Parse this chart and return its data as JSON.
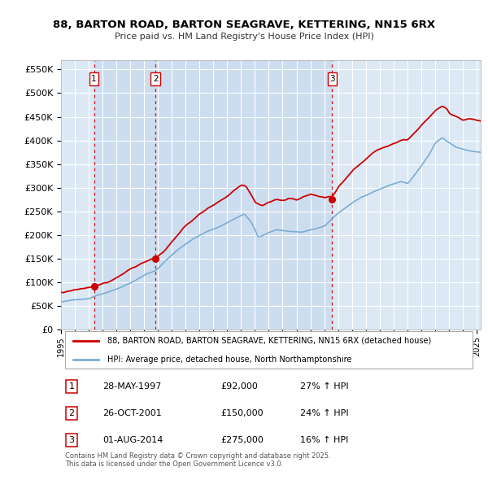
{
  "title_line1": "88, BARTON ROAD, BARTON SEAGRAVE, KETTERING, NN15 6RX",
  "title_line2": "Price paid vs. HM Land Registry's House Price Index (HPI)",
  "ylabel_ticks": [
    "£0",
    "£50K",
    "£100K",
    "£150K",
    "£200K",
    "£250K",
    "£300K",
    "£350K",
    "£400K",
    "£450K",
    "£500K",
    "£550K"
  ],
  "ytick_values": [
    0,
    50000,
    100000,
    150000,
    200000,
    250000,
    300000,
    350000,
    400000,
    450000,
    500000,
    550000
  ],
  "ylim": [
    0,
    570000
  ],
  "xlim_start": 1995.0,
  "xlim_end": 2025.3,
  "background_color": "#dce9f5",
  "shade_color": "#c8d8ee",
  "red_line_color": "#cc0000",
  "blue_line_color": "#7aadd4",
  "grid_color": "#ffffff",
  "sale_points": [
    {
      "date_num": 1997.38,
      "price": 92000,
      "label": "1"
    },
    {
      "date_num": 2001.82,
      "price": 150000,
      "label": "2"
    },
    {
      "date_num": 2014.58,
      "price": 275000,
      "label": "3"
    }
  ],
  "legend_line1": "88, BARTON ROAD, BARTON SEAGRAVE, KETTERING, NN15 6RX (detached house)",
  "legend_line2": "HPI: Average price, detached house, North Northamptonshire",
  "table_entries": [
    {
      "num": "1",
      "date": "28-MAY-1997",
      "price": "£92,000",
      "change": "27% ↑ HPI"
    },
    {
      "num": "2",
      "date": "26-OCT-2001",
      "price": "£150,000",
      "change": "24% ↑ HPI"
    },
    {
      "num": "3",
      "date": "01-AUG-2014",
      "price": "£275,000",
      "change": "16% ↑ HPI"
    }
  ],
  "footnote": "Contains HM Land Registry data © Crown copyright and database right 2025.\nThis data is licensed under the Open Government Licence v3.0.",
  "xtick_years": [
    1995,
    1996,
    1997,
    1998,
    1999,
    2000,
    2001,
    2002,
    2003,
    2004,
    2005,
    2006,
    2007,
    2008,
    2009,
    2010,
    2011,
    2012,
    2013,
    2014,
    2015,
    2016,
    2017,
    2018,
    2019,
    2020,
    2021,
    2022,
    2023,
    2024,
    2025
  ]
}
